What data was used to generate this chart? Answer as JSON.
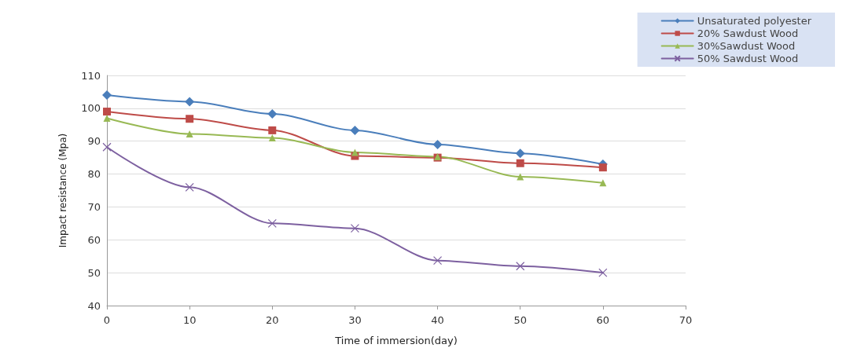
{
  "chart_data": {
    "type": "line",
    "xlabel": "Time of immersion(day)",
    "ylabel": "Impact resistance (Mpa)",
    "x": [
      0,
      10,
      20,
      30,
      40,
      50,
      60
    ],
    "xlim": [
      0,
      70
    ],
    "xticks": [
      0,
      10,
      20,
      30,
      40,
      50,
      60,
      70
    ],
    "ylim": [
      40,
      110
    ],
    "yticks": [
      40,
      50,
      60,
      70,
      80,
      90,
      100,
      110
    ],
    "grid": "y",
    "legend": "top right",
    "line_style": "solid",
    "series": [
      {
        "name": "Unsaturated polyester",
        "color": "#4a7ebb",
        "marker": "diamond",
        "values": [
          104,
          102,
          98.3,
          93.3,
          89,
          86.3,
          83
        ]
      },
      {
        "name": "20% Sawdust Wood",
        "color": "#be4b48",
        "marker": "square",
        "values": [
          99,
          96.8,
          93.3,
          85.5,
          85,
          83.3,
          82
        ]
      },
      {
        "name": "30%Sawdust Wood",
        "color": "#98b954",
        "marker": "triangle",
        "values": [
          97,
          92.2,
          91,
          86.6,
          85.3,
          79.2,
          77.3
        ]
      },
      {
        "name": "50% Sawdust Wood",
        "color": "#7d60a0",
        "marker": "cross",
        "values": [
          88.2,
          76,
          65,
          63.5,
          53.7,
          52,
          50
        ]
      }
    ]
  }
}
